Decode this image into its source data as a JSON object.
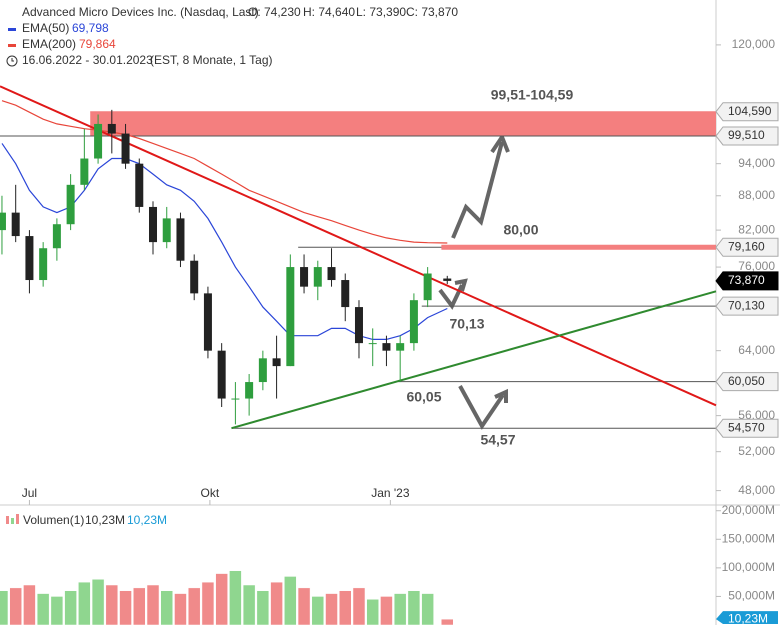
{
  "chart_data": {
    "type": "candlestick",
    "title": "Advanced Micro Devices Inc. (Nasdaq, Last)",
    "quote": [
      "O: 74,230",
      "H: 74,640",
      "L: 73,390",
      "C: 73,870"
    ],
    "period": "16.06.2022 - 30.01.2023",
    "period_note": "(EST, 8 Monate, 1 Tag)",
    "log": true,
    "xlim": [
      "2022-06-16",
      "2023-06-16"
    ],
    "xticks": [
      {
        "value": "2022-07-01",
        "label": "Jul"
      },
      {
        "value": "2022-10-01",
        "label": "Okt"
      },
      {
        "value": "2023-01-01",
        "label": "Jan '23"
      }
    ],
    "ylim": [
      46.6,
      131.6
    ],
    "yticks": [
      {
        "value": 120,
        "label": "120,000"
      },
      {
        "value": 94,
        "label": "94,000"
      },
      {
        "value": 88,
        "label": "88,000"
      },
      {
        "value": 82,
        "label": "82,000"
      },
      {
        "value": 76,
        "label": "76,000"
      },
      {
        "value": 64,
        "label": "64,000"
      },
      {
        "value": 56,
        "label": "56,000"
      },
      {
        "value": 52,
        "label": "52,000"
      },
      {
        "value": 48,
        "label": "48,000"
      }
    ],
    "up_color": "#2e9e3e",
    "down_color": "#222222",
    "x": [
      "2022-06-17",
      "2022-06-24",
      "2022-07-01",
      "2022-07-08",
      "2022-07-15",
      "2022-07-22",
      "2022-07-29",
      "2022-08-05",
      "2022-08-12",
      "2022-08-19",
      "2022-08-26",
      "2022-09-02",
      "2022-09-09",
      "2022-09-16",
      "2022-09-23",
      "2022-09-30",
      "2022-10-07",
      "2022-10-14",
      "2022-10-21",
      "2022-10-28",
      "2022-11-04",
      "2022-11-11",
      "2022-11-18",
      "2022-11-25",
      "2022-12-02",
      "2022-12-09",
      "2022-12-16",
      "2022-12-23",
      "2022-12-30",
      "2023-01-06",
      "2023-01-13",
      "2023-01-20",
      "2023-01-30"
    ],
    "open": [
      82,
      85,
      81,
      74,
      79,
      83,
      90,
      95,
      102,
      100,
      94,
      86,
      80,
      84,
      77,
      72,
      64,
      58,
      58,
      60,
      63,
      62,
      76,
      73,
      76,
      74,
      70,
      65,
      65,
      64,
      65,
      71,
      74.23
    ],
    "high": [
      88,
      90,
      82,
      80,
      84,
      92,
      101,
      104,
      105,
      102,
      95,
      87,
      86,
      85,
      78,
      73,
      65,
      60,
      61,
      64,
      66,
      78,
      78,
      77,
      79,
      75,
      71,
      67,
      66,
      66,
      72,
      76,
      74.64
    ],
    "low": [
      78,
      80,
      72,
      73,
      77,
      82,
      89,
      94,
      96,
      93,
      85,
      78,
      79,
      76,
      71,
      63,
      57,
      55,
      56,
      59,
      58,
      62,
      72,
      71,
      73,
      68,
      63,
      62,
      62,
      60,
      64,
      70,
      73.39
    ],
    "close": [
      85,
      81,
      74,
      79,
      83,
      90,
      95,
      102,
      100,
      94,
      86,
      80,
      84,
      77,
      72,
      64,
      58,
      58,
      60,
      63,
      62,
      76,
      73,
      76,
      74,
      70,
      65,
      65,
      64,
      65,
      71,
      75,
      73.87
    ],
    "series": [
      {
        "name": "EMA(50)",
        "label": "69,798",
        "color": "#2b46d8",
        "values": [
          98,
          94,
          89,
          86,
          85,
          86,
          89,
          93,
          95,
          95,
          94,
          92,
          90,
          89,
          87,
          84,
          80,
          76,
          73,
          70,
          68,
          66,
          66,
          66,
          67,
          67,
          66,
          65.5,
          65.5,
          66,
          67,
          68.5,
          69.8
        ]
      },
      {
        "name": "EMA(200)",
        "label": "79,864",
        "color": "#e8463a",
        "values": [
          107,
          106,
          104.5,
          103,
          102,
          101.5,
          101,
          100.7,
          100.3,
          99.8,
          99,
          98,
          97,
          96,
          95,
          93.5,
          92,
          90.5,
          89,
          88,
          87,
          86,
          85,
          84.3,
          83.6,
          82.8,
          82,
          81.3,
          80.7,
          80.3,
          80,
          79.9,
          79.86
        ]
      }
    ],
    "zone": {
      "from": 99.51,
      "to": 104.59,
      "start": "2022-08-01",
      "color": "#f47f7f",
      "label": "99,51-104,59"
    },
    "levels": [
      {
        "value": 104.59,
        "label": "104,590",
        "start": "2022-08-01",
        "color": "#f47f7f"
      },
      {
        "value": 99.51,
        "label": "99,510",
        "start": "2022-06-16",
        "color": "#555555"
      },
      {
        "value": 79.16,
        "label": "79,160",
        "start": "2022-11-15",
        "color": "#555555"
      },
      {
        "value": 73.87,
        "label": "73,870",
        "start": "2023-06-16",
        "color": "#000000"
      },
      {
        "value": 70.13,
        "label": "70,130",
        "start": "2023-01-17",
        "color": "#555555"
      },
      {
        "value": 60.05,
        "label": "60,050",
        "start": "2023-01-05",
        "color": "#555555"
      },
      {
        "value": 54.57,
        "label": "54,570",
        "start": "2022-10-12",
        "color": "#555555"
      }
    ],
    "resistance": {
      "value": 79.16,
      "start": "2023-01-27",
      "color": "#f47f7f"
    },
    "trendlines": [
      {
        "color": "#e01818",
        "from": [
          "2022-06-16",
          110.2
        ],
        "to": [
          "2023-06-16",
          57.2
        ]
      },
      {
        "color": "#2f8a2f",
        "from": [
          "2022-10-12",
          54.57
        ],
        "to": [
          "2023-06-16",
          72.3
        ]
      }
    ],
    "annotations": [
      "99,51-104,59",
      "80,00",
      "70,13",
      "60,05",
      "54,57"
    ],
    "volume": {
      "name": "Volumen(1)",
      "labels": [
        "10,23M",
        "10,23M"
      ],
      "up_color": "#8fd68f",
      "down_color": "#f08a8a",
      "ylim": [
        0,
        210
      ],
      "yticks": [
        {
          "value": 200,
          "label": "200,000M"
        },
        {
          "value": 150,
          "label": "150,000M"
        },
        {
          "value": 100,
          "label": "100,000M"
        },
        {
          "value": 50,
          "label": "50,000M"
        }
      ],
      "last": {
        "value": 10.23,
        "label": "10,23M"
      },
      "values": [
        60,
        65,
        70,
        55,
        50,
        60,
        75,
        80,
        70,
        60,
        65,
        70,
        60,
        55,
        65,
        75,
        90,
        95,
        70,
        60,
        75,
        85,
        65,
        50,
        55,
        60,
        65,
        45,
        50,
        55,
        60,
        55,
        10.23
      ]
    }
  }
}
